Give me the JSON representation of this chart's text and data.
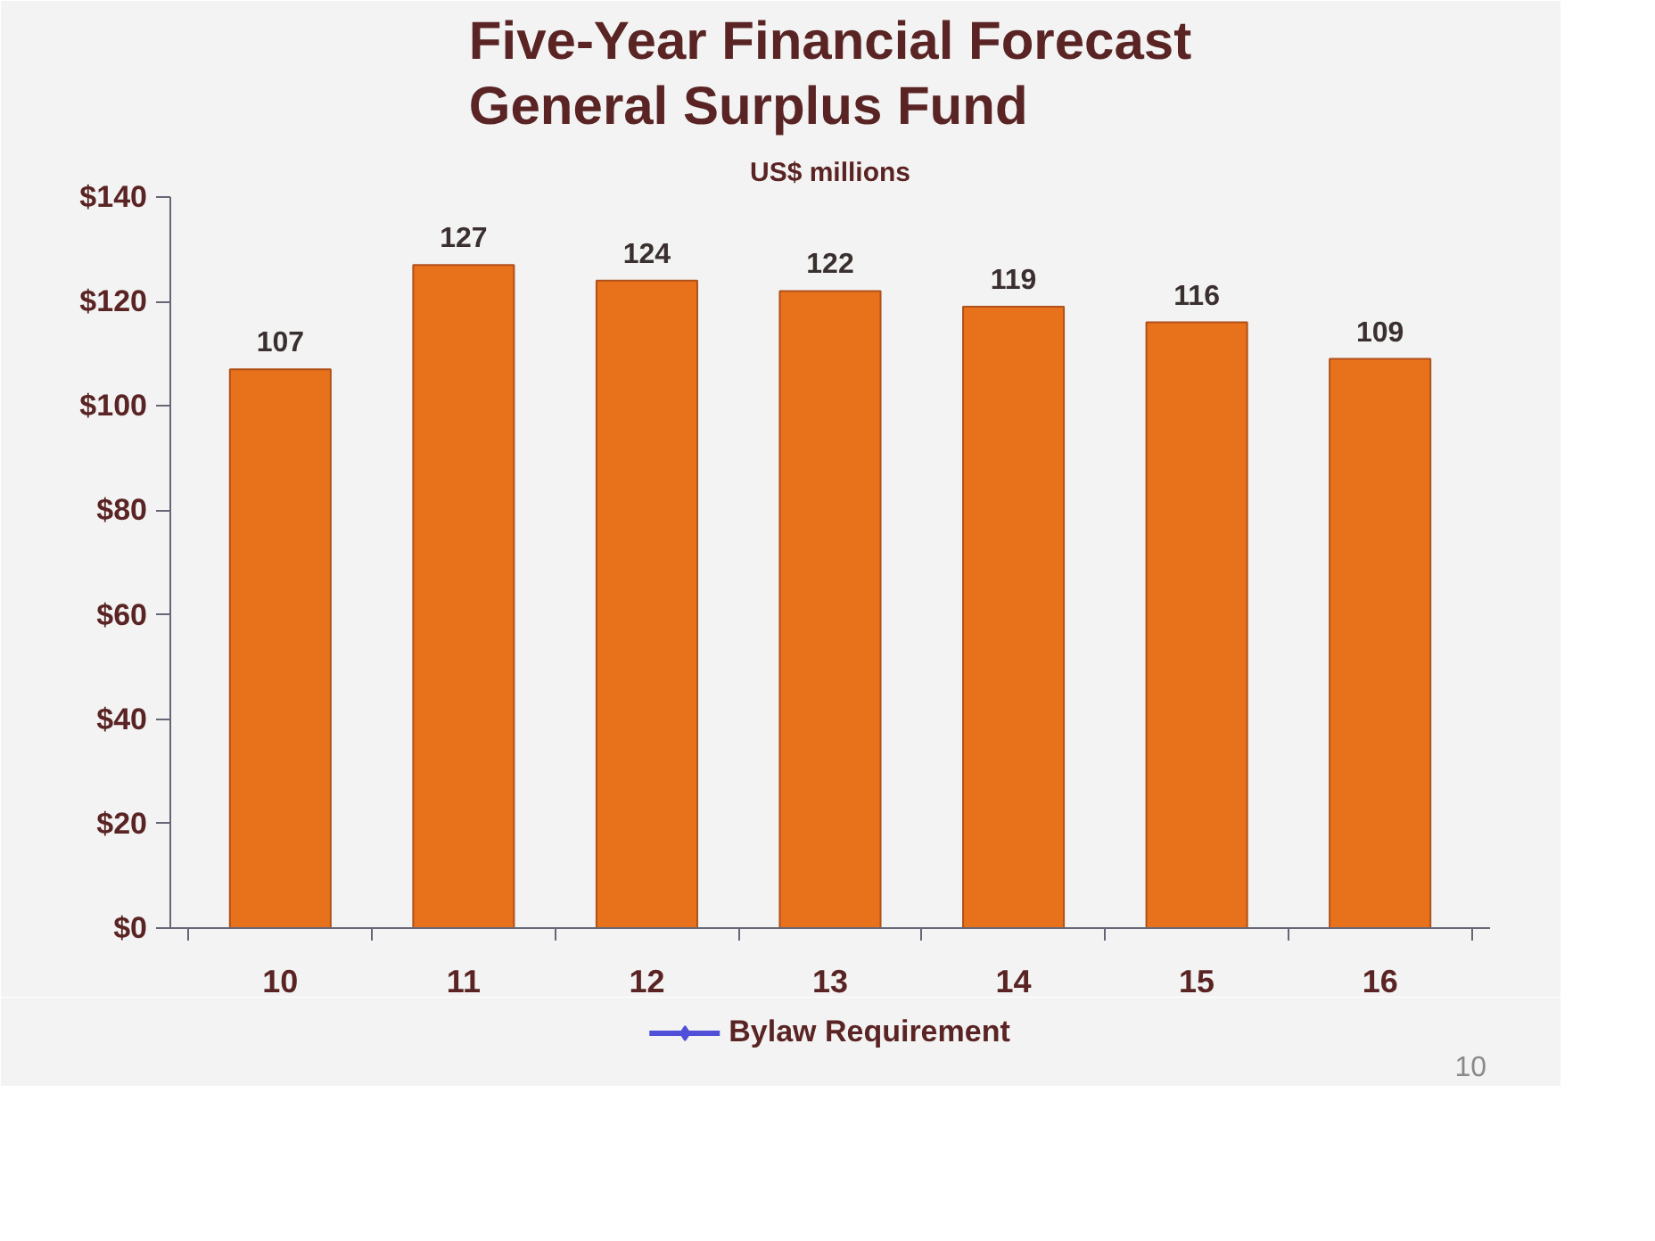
{
  "chart_data": {
    "type": "bar",
    "title": "Five-Year Financial Forecast\nGeneral Surplus Fund",
    "subtitle": "US$ millions",
    "categories": [
      "10",
      "11",
      "12",
      "13",
      "14",
      "15",
      "16"
    ],
    "series": [
      {
        "type": "bar",
        "color": "#e8711c",
        "values": [
          107,
          127,
          124,
          122,
          119,
          116,
          109
        ]
      },
      {
        "type": "line",
        "name": "Bylaw Requirement",
        "color": "#5050d8",
        "marker": "diamond",
        "values": [
          null,
          null,
          null,
          null,
          null,
          null,
          null
        ]
      }
    ],
    "ylim": [
      0,
      140
    ],
    "yticks": [
      {
        "value": 0,
        "label": "$0"
      },
      {
        "value": 20,
        "label": "$20"
      },
      {
        "value": 40,
        "label": "$40"
      },
      {
        "value": 60,
        "label": "$60"
      },
      {
        "value": 80,
        "label": "$80"
      },
      {
        "value": 100,
        "label": "$100"
      },
      {
        "value": 120,
        "label": "$120"
      },
      {
        "value": 140,
        "label": "$140"
      }
    ],
    "data_labels": true,
    "legend": "bottom",
    "annotations": [
      "10"
    ]
  }
}
